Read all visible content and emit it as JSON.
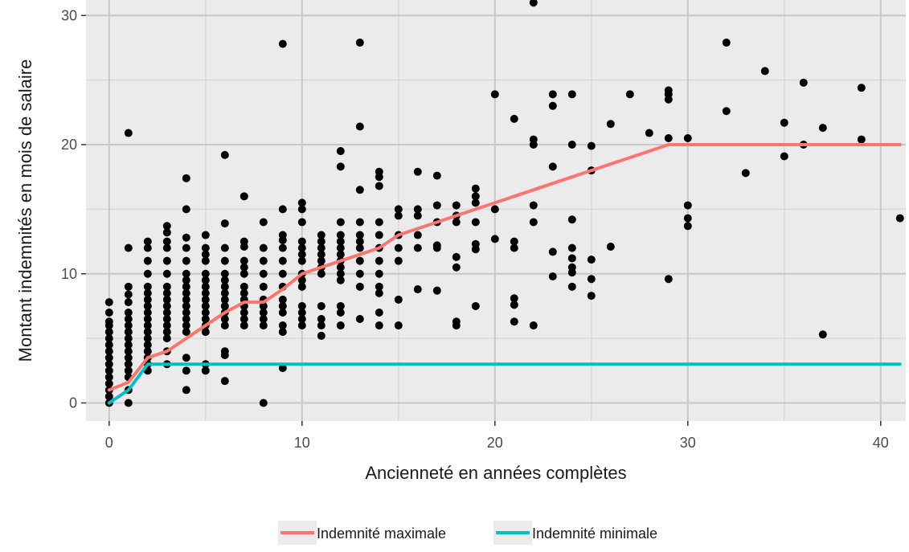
{
  "chart_data": {
    "type": "scatter",
    "title": "",
    "xlabel": "Ancienneté en années complètes",
    "ylabel": "Montant indemnités en mois de salaire",
    "xlim": [
      -1.2,
      41.3
    ],
    "ylim": [
      -1.4,
      31.2
    ],
    "xticks": [
      0,
      10,
      20,
      30,
      40
    ],
    "yticks": [
      0,
      10,
      20,
      30
    ],
    "grid": true,
    "legend_position": "bottom",
    "colors": {
      "panel": "#ebebeb",
      "grid": "#c8c8c8",
      "points": "#000000",
      "max_line": "#f8766d",
      "min_line": "#00bfc4"
    },
    "points": [
      [
        0,
        0
      ],
      [
        0,
        0.5
      ],
      [
        0,
        1
      ],
      [
        0,
        1.5
      ],
      [
        0,
        2
      ],
      [
        0,
        2.5
      ],
      [
        0,
        3
      ],
      [
        0,
        3.5
      ],
      [
        0,
        4
      ],
      [
        0,
        4.5
      ],
      [
        0,
        5
      ],
      [
        0,
        5.5
      ],
      [
        0,
        6
      ],
      [
        0,
        6.3
      ],
      [
        0,
        7
      ],
      [
        0,
        7.8
      ],
      [
        1,
        0
      ],
      [
        1,
        1
      ],
      [
        1,
        2
      ],
      [
        1,
        2.5
      ],
      [
        1,
        3
      ],
      [
        1,
        3.5
      ],
      [
        1,
        4
      ],
      [
        1,
        4.5
      ],
      [
        1,
        5
      ],
      [
        1,
        5.5
      ],
      [
        1,
        6
      ],
      [
        1,
        6.5
      ],
      [
        1,
        7
      ],
      [
        1,
        7.8
      ],
      [
        1,
        8.4
      ],
      [
        1,
        9
      ],
      [
        1,
        12
      ],
      [
        1,
        20.9
      ],
      [
        2,
        2.5
      ],
      [
        2,
        3
      ],
      [
        2,
        3.5
      ],
      [
        2,
        4
      ],
      [
        2,
        4.5
      ],
      [
        2,
        5
      ],
      [
        2,
        5.5
      ],
      [
        2,
        6
      ],
      [
        2,
        6.5
      ],
      [
        2,
        7
      ],
      [
        2,
        7.5
      ],
      [
        2,
        8
      ],
      [
        2,
        8.5
      ],
      [
        2,
        9
      ],
      [
        2,
        10
      ],
      [
        2,
        11
      ],
      [
        2,
        12
      ],
      [
        2,
        12.5
      ],
      [
        3,
        3
      ],
      [
        3,
        4
      ],
      [
        3,
        5
      ],
      [
        3,
        5.5
      ],
      [
        3,
        6
      ],
      [
        3,
        6.5
      ],
      [
        3,
        7
      ],
      [
        3,
        7.5
      ],
      [
        3,
        8
      ],
      [
        3,
        8.5
      ],
      [
        3,
        9
      ],
      [
        3,
        10
      ],
      [
        3,
        11
      ],
      [
        3,
        12
      ],
      [
        3,
        12.5
      ],
      [
        3,
        13.2
      ],
      [
        3,
        13.7
      ],
      [
        4,
        1
      ],
      [
        4,
        2.5
      ],
      [
        4,
        3.5
      ],
      [
        4,
        5.5
      ],
      [
        4,
        6
      ],
      [
        4,
        6.5
      ],
      [
        4,
        7
      ],
      [
        4,
        7.5
      ],
      [
        4,
        8
      ],
      [
        4,
        8.5
      ],
      [
        4,
        9
      ],
      [
        4,
        9.5
      ],
      [
        4,
        10
      ],
      [
        4,
        11
      ],
      [
        4,
        12
      ],
      [
        4,
        12.8
      ],
      [
        4,
        15
      ],
      [
        4,
        17.4
      ],
      [
        5,
        2.5
      ],
      [
        5,
        3
      ],
      [
        5,
        5.5
      ],
      [
        5,
        6
      ],
      [
        5,
        6.5
      ],
      [
        5,
        7
      ],
      [
        5,
        7.5
      ],
      [
        5,
        8
      ],
      [
        5,
        8.5
      ],
      [
        5,
        9
      ],
      [
        5,
        9.5
      ],
      [
        5,
        10
      ],
      [
        5,
        11
      ],
      [
        5,
        11.5
      ],
      [
        5,
        12
      ],
      [
        5,
        13
      ],
      [
        6,
        1.7
      ],
      [
        6,
        3.7
      ],
      [
        6,
        4
      ],
      [
        6,
        6
      ],
      [
        6,
        6.5
      ],
      [
        6,
        7
      ],
      [
        6,
        7.5
      ],
      [
        6,
        8
      ],
      [
        6,
        8.5
      ],
      [
        6,
        9
      ],
      [
        6,
        9.5
      ],
      [
        6,
        10
      ],
      [
        6,
        11
      ],
      [
        6,
        12
      ],
      [
        6,
        13.9
      ],
      [
        6,
        19.2
      ],
      [
        7,
        6
      ],
      [
        7,
        6.5
      ],
      [
        7,
        7
      ],
      [
        7,
        7.5
      ],
      [
        7,
        8
      ],
      [
        7,
        8.5
      ],
      [
        7,
        9
      ],
      [
        7,
        10
      ],
      [
        7,
        10.5
      ],
      [
        7,
        11
      ],
      [
        7,
        12.1
      ],
      [
        7,
        12.5
      ],
      [
        7,
        16
      ],
      [
        8,
        0
      ],
      [
        8,
        6
      ],
      [
        8,
        6.5
      ],
      [
        8,
        7
      ],
      [
        8,
        7.5
      ],
      [
        8,
        8
      ],
      [
        8,
        9
      ],
      [
        8,
        10
      ],
      [
        8,
        11
      ],
      [
        8,
        12
      ],
      [
        8,
        14
      ],
      [
        9,
        2.7
      ],
      [
        9,
        5.5
      ],
      [
        9,
        6
      ],
      [
        9,
        7
      ],
      [
        9,
        7.5
      ],
      [
        9,
        8
      ],
      [
        9,
        9
      ],
      [
        9,
        10
      ],
      [
        9,
        11
      ],
      [
        9,
        12
      ],
      [
        9,
        12.6
      ],
      [
        9,
        13
      ],
      [
        9,
        15
      ],
      [
        9,
        27.8
      ],
      [
        10,
        6
      ],
      [
        10,
        6.5
      ],
      [
        10,
        7
      ],
      [
        10,
        7.5
      ],
      [
        10,
        9
      ],
      [
        10,
        9.5
      ],
      [
        10,
        10
      ],
      [
        10,
        11
      ],
      [
        10,
        11.5
      ],
      [
        10,
        12
      ],
      [
        10,
        12.5
      ],
      [
        10,
        14
      ],
      [
        10,
        15
      ],
      [
        10,
        15.5
      ],
      [
        11,
        5.2
      ],
      [
        11,
        6
      ],
      [
        11,
        6.5
      ],
      [
        11,
        7.5
      ],
      [
        11,
        10
      ],
      [
        11,
        10.5
      ],
      [
        11,
        11
      ],
      [
        11,
        11.5
      ],
      [
        11,
        12
      ],
      [
        11,
        12.5
      ],
      [
        11,
        13
      ],
      [
        12,
        6
      ],
      [
        12,
        7
      ],
      [
        12,
        7.5
      ],
      [
        12,
        9.5
      ],
      [
        12,
        10
      ],
      [
        12,
        10.5
      ],
      [
        12,
        11
      ],
      [
        12,
        11.5
      ],
      [
        12,
        12
      ],
      [
        12,
        12.5
      ],
      [
        12,
        13
      ],
      [
        12,
        14
      ],
      [
        12,
        18.3
      ],
      [
        12,
        19.5
      ],
      [
        13,
        6.5
      ],
      [
        13,
        9
      ],
      [
        13,
        10
      ],
      [
        13,
        11
      ],
      [
        13,
        12
      ],
      [
        13,
        12.5
      ],
      [
        13,
        13
      ],
      [
        13,
        14
      ],
      [
        13,
        16.5
      ],
      [
        13,
        21.4
      ],
      [
        13,
        27.9
      ],
      [
        14,
        6
      ],
      [
        14,
        7
      ],
      [
        14,
        8.5
      ],
      [
        14,
        9
      ],
      [
        14,
        10
      ],
      [
        14,
        11
      ],
      [
        14,
        12
      ],
      [
        14,
        13
      ],
      [
        14,
        14
      ],
      [
        14,
        16.8
      ],
      [
        14,
        17.5
      ],
      [
        14,
        17.9
      ],
      [
        15,
        6
      ],
      [
        15,
        8
      ],
      [
        15,
        11
      ],
      [
        15,
        12
      ],
      [
        15,
        13
      ],
      [
        15,
        14.5
      ],
      [
        15,
        15
      ],
      [
        16,
        8.8
      ],
      [
        16,
        12
      ],
      [
        16,
        13
      ],
      [
        16,
        14.5
      ],
      [
        16,
        15
      ],
      [
        16,
        17.9
      ],
      [
        17,
        8.7
      ],
      [
        17,
        12
      ],
      [
        17,
        12.2
      ],
      [
        17,
        14
      ],
      [
        17,
        15.3
      ],
      [
        17,
        17.6
      ],
      [
        18,
        6
      ],
      [
        18,
        6.3
      ],
      [
        18,
        10.5
      ],
      [
        18,
        11.3
      ],
      [
        18,
        14
      ],
      [
        18,
        14.5
      ],
      [
        18,
        15.3
      ],
      [
        19,
        7.5
      ],
      [
        19,
        11.9
      ],
      [
        19,
        12.3
      ],
      [
        19,
        14
      ],
      [
        19,
        15.5
      ],
      [
        19,
        16
      ],
      [
        19,
        16.6
      ],
      [
        20,
        12.7
      ],
      [
        20,
        15
      ],
      [
        20,
        23.9
      ],
      [
        21,
        6.3
      ],
      [
        21,
        7.6
      ],
      [
        21,
        8.1
      ],
      [
        21,
        12
      ],
      [
        21,
        12.5
      ],
      [
        21,
        22
      ],
      [
        22,
        6
      ],
      [
        22,
        14
      ],
      [
        22,
        15.3
      ],
      [
        22,
        20
      ],
      [
        22,
        20.4
      ],
      [
        22,
        31
      ],
      [
        23,
        9.8
      ],
      [
        23,
        11.7
      ],
      [
        23,
        18.3
      ],
      [
        23,
        23
      ],
      [
        23,
        23.9
      ],
      [
        24,
        9
      ],
      [
        24,
        10.1
      ],
      [
        24,
        10.5
      ],
      [
        24,
        11.2
      ],
      [
        24,
        12
      ],
      [
        24,
        14.2
      ],
      [
        24,
        20
      ],
      [
        24,
        23.9
      ],
      [
        25,
        8.3
      ],
      [
        25,
        9.6
      ],
      [
        25,
        11.1
      ],
      [
        25,
        18
      ],
      [
        25,
        19.9
      ],
      [
        26,
        12.1
      ],
      [
        26,
        21.6
      ],
      [
        27,
        23.9
      ],
      [
        28,
        20.9
      ],
      [
        29,
        9.6
      ],
      [
        29,
        20.5
      ],
      [
        29,
        23.5
      ],
      [
        29,
        23.9
      ],
      [
        29,
        24.2
      ],
      [
        30,
        13.7
      ],
      [
        30,
        14.3
      ],
      [
        30,
        15.3
      ],
      [
        30,
        20.5
      ],
      [
        32,
        22.6
      ],
      [
        32,
        27.9
      ],
      [
        33,
        17.8
      ],
      [
        34,
        25.7
      ],
      [
        35,
        19.1
      ],
      [
        35,
        21.7
      ],
      [
        36,
        20
      ],
      [
        36,
        24.8
      ],
      [
        37,
        5.3
      ],
      [
        37,
        21.3
      ],
      [
        39,
        20.4
      ],
      [
        39,
        24.4
      ],
      [
        41,
        14.3
      ]
    ],
    "series": [
      {
        "name": "Indemnité maximale",
        "color": "#f8766d",
        "x": [
          0,
          1,
          2,
          3,
          4,
          5,
          6,
          7,
          8,
          9,
          10,
          11,
          12,
          13,
          14,
          15,
          16,
          17,
          18,
          19,
          20,
          21,
          22,
          23,
          24,
          25,
          26,
          27,
          28,
          29,
          30,
          41
        ],
        "y": [
          1,
          1.6,
          3.5,
          4,
          5,
          6,
          7,
          7.8,
          7.8,
          8.8,
          10,
          10.5,
          11,
          11.5,
          12,
          13,
          13.5,
          14,
          14.5,
          15,
          15.5,
          16,
          16.5,
          17,
          17.5,
          18,
          18.5,
          19,
          19.5,
          20,
          20,
          20
        ]
      },
      {
        "name": "Indemnité minimale",
        "color": "#00bfc4",
        "x": [
          0,
          1,
          2,
          41
        ],
        "y": [
          0,
          1,
          3,
          3
        ]
      }
    ]
  }
}
